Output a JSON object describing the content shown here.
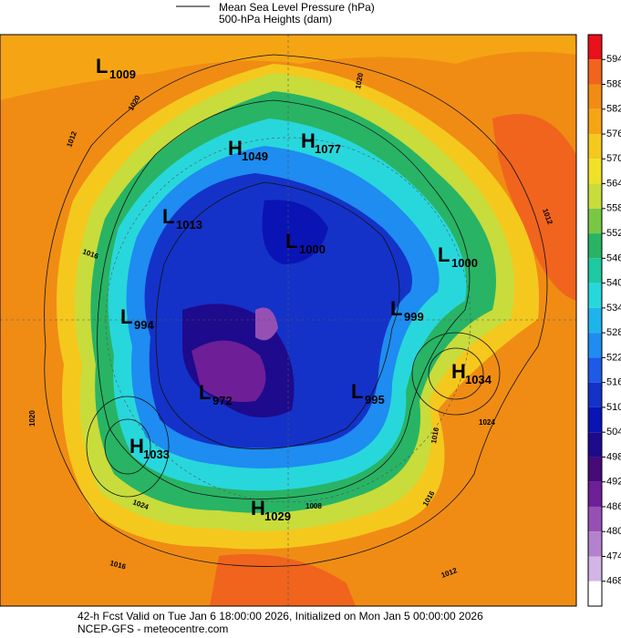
{
  "header": {
    "line1": "Mean Sea Level Pressure (hPa)",
    "line2": "500-hPa Heights (dam)"
  },
  "legend": {
    "levels": [
      594,
      588,
      582,
      576,
      570,
      564,
      558,
      552,
      546,
      540,
      534,
      528,
      522,
      516,
      510,
      504,
      498,
      492,
      486,
      480,
      474,
      468
    ],
    "colors": [
      "#e8101a",
      "#f0641e",
      "#f08c14",
      "#f5a514",
      "#f5c81e",
      "#f0e128",
      "#c8dc3c",
      "#78c846",
      "#28b464",
      "#1ec8a0",
      "#28d7dc",
      "#1eb4eb",
      "#1e8cf0",
      "#1e5ae6",
      "#1432c8",
      "#0a14b4",
      "#1e0a8c",
      "#460a78",
      "#6e1e96",
      "#9650b4",
      "#b482cd",
      "#d2b4e6",
      "#ffffff"
    ]
  },
  "centers": [
    {
      "type": "L",
      "value": 1009
    },
    {
      "type": "H",
      "value": 1049
    },
    {
      "type": "H",
      "value": 1077
    },
    {
      "type": "L",
      "value": 1013
    },
    {
      "type": "L",
      "value": 1000
    },
    {
      "type": "L",
      "value": 1000
    },
    {
      "type": "L",
      "value": 994
    },
    {
      "type": "L",
      "value": 999
    },
    {
      "type": "H",
      "value": 1034
    },
    {
      "type": "L",
      "value": 972
    },
    {
      "type": "L",
      "value": 995
    },
    {
      "type": "H",
      "value": 1033
    },
    {
      "type": "H",
      "value": 1029
    }
  ],
  "isobar_labels": [
    1012,
    1020,
    1016,
    1020,
    1024,
    1016,
    1012,
    1020,
    1024,
    1016,
    1016,
    1012,
    1008
  ],
  "footer": {
    "line1": "42-h Fcst Valid on Tue Jan  6 18:00:00 2026, Initialized on Mon Jan  5 00:00:00 2026",
    "line2": "NCEP-GFS  - meteocentre.com"
  }
}
